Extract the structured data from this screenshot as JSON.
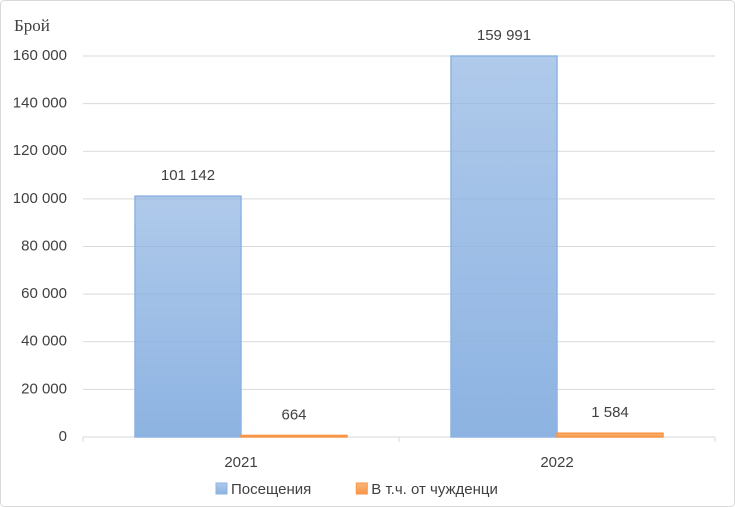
{
  "chart_data": {
    "type": "bar",
    "y_label": "Брой",
    "categories": [
      "2021",
      "2022"
    ],
    "series": [
      {
        "name": "Посещения",
        "color": "#8db3e2",
        "values": [
          101142,
          159991
        ],
        "value_labels": [
          "101 142",
          "159 991"
        ]
      },
      {
        "name": "В т.ч. от чужденци",
        "color": "#f79646",
        "values": [
          664,
          1584
        ],
        "value_labels": [
          "664",
          "1 584"
        ]
      }
    ],
    "ylim": [
      0,
      160000
    ],
    "yticks": [
      0,
      {
        "value": 20000,
        "label": "20 000"
      },
      {
        "value": 40000,
        "label": "40 000"
      },
      {
        "value": 60000,
        "label": "60 000"
      },
      {
        "value": 80000,
        "label": "80 000"
      },
      {
        "value": 100000,
        "label": "100 000"
      },
      {
        "value": 120000,
        "label": "120 000"
      },
      {
        "value": 140000,
        "label": "140 000"
      },
      {
        "value": 160000,
        "label": "160 000"
      }
    ],
    "grid": true,
    "legend": "bottom"
  }
}
